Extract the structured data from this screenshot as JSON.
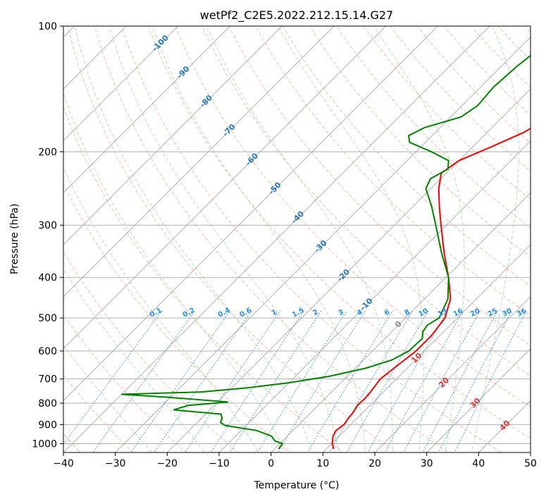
{
  "chart_data": {
    "type": "line",
    "title": "wetPf2_C2E5.2022.212.15.14.G27",
    "xlabel": "Temperature (°C)",
    "ylabel": "Pressure (hPa)",
    "xlim": [
      -40,
      50
    ],
    "ylim": [
      1050,
      100
    ],
    "yscale": "log",
    "x_ticks": [
      -40,
      -30,
      -20,
      -10,
      0,
      10,
      20,
      30,
      40,
      50
    ],
    "y_ticks": [
      100,
      200,
      300,
      400,
      500,
      600,
      700,
      800,
      900,
      1000
    ],
    "isotherm_spacing_C": 10,
    "dry_adiabat_step_C": 10,
    "moist_adiabat_surface_temps_C": [
      -20,
      -10,
      0,
      5,
      10,
      15,
      20,
      25,
      30,
      35,
      40
    ],
    "mixing_ratio_lines": [
      "0.1",
      "0.2",
      "0.4",
      "0.6",
      "1",
      "1.5",
      "2",
      "3",
      "4",
      "6",
      "8",
      "10",
      "13",
      "16",
      "20",
      "25",
      "30",
      "36"
    ],
    "mixing_ratio_label_pressure_hPa": 500,
    "isotherm_labels": [
      {
        "text": "-100",
        "t": -100
      },
      {
        "text": "-90",
        "t": -90
      },
      {
        "text": "-80",
        "t": -80
      },
      {
        "text": "-70",
        "t": -70
      },
      {
        "text": "-60",
        "t": -60
      },
      {
        "text": "-50",
        "t": -50
      },
      {
        "text": "-40",
        "t": -40
      },
      {
        "text": "-30",
        "t": -30
      },
      {
        "text": "-20",
        "t": -20
      },
      {
        "text": "-10",
        "t": -10
      },
      {
        "text": "0",
        "t": 0
      },
      {
        "text": "10",
        "t": 10
      },
      {
        "text": "20",
        "t": 20
      },
      {
        "text": "30",
        "t": 30
      },
      {
        "text": "40",
        "t": 40
      }
    ],
    "series": [
      {
        "name": "Temperature",
        "color": "#ee0000",
        "points": [
          {
            "p": 1030,
            "t": 11.4
          },
          {
            "p": 1000,
            "t": 10.1
          },
          {
            "p": 960,
            "t": 8.8
          },
          {
            "p": 930,
            "t": 8.3
          },
          {
            "p": 900,
            "t": 8.7
          },
          {
            "p": 870,
            "t": 8.3
          },
          {
            "p": 840,
            "t": 8.1
          },
          {
            "p": 810,
            "t": 7.6
          },
          {
            "p": 780,
            "t": 7.7
          },
          {
            "p": 750,
            "t": 7.5
          },
          {
            "p": 700,
            "t": 6.9
          },
          {
            "p": 650,
            "t": 7.6
          },
          {
            "p": 600,
            "t": 8.4
          },
          {
            "p": 550,
            "t": 8.4
          },
          {
            "p": 500,
            "t": 7.6
          },
          {
            "p": 450,
            "t": 5.0
          },
          {
            "p": 400,
            "t": 0.5
          },
          {
            "p": 350,
            "t": -5.0
          },
          {
            "p": 300,
            "t": -11.0
          },
          {
            "p": 270,
            "t": -15.0
          },
          {
            "p": 245,
            "t": -18.5
          },
          {
            "p": 225,
            "t": -21.0
          },
          {
            "p": 210,
            "t": -20.0
          },
          {
            "p": 195,
            "t": -16.5
          },
          {
            "p": 180,
            "t": -13.0
          },
          {
            "p": 170,
            "t": -11.5
          },
          {
            "p": 160,
            "t": -10.0
          },
          {
            "p": 150,
            "t": -9.5
          },
          {
            "p": 140,
            "t": -9.0
          },
          {
            "p": 130,
            "t": -8.0
          },
          {
            "p": 120,
            "t": -7.0
          },
          {
            "p": 110,
            "t": -7.0
          },
          {
            "p": 100,
            "t": -6.5
          }
        ]
      },
      {
        "name": "Dewpoint",
        "color": "#008000",
        "points": [
          {
            "p": 1030,
            "t": 0.8
          },
          {
            "p": 1000,
            "t": 0.5
          },
          {
            "p": 985,
            "t": -1.5
          },
          {
            "p": 960,
            "t": -3.0
          },
          {
            "p": 930,
            "t": -7.0
          },
          {
            "p": 905,
            "t": -14.0
          },
          {
            "p": 890,
            "t": -15.5
          },
          {
            "p": 870,
            "t": -16.0
          },
          {
            "p": 850,
            "t": -17.0
          },
          {
            "p": 830,
            "t": -27.0
          },
          {
            "p": 810,
            "t": -25.0
          },
          {
            "p": 795,
            "t": -18.0
          },
          {
            "p": 775,
            "t": -30.0
          },
          {
            "p": 762,
            "t": -40.0
          },
          {
            "p": 752,
            "t": -25.0
          },
          {
            "p": 735,
            "t": -17.0
          },
          {
            "p": 715,
            "t": -10.0
          },
          {
            "p": 690,
            "t": -3.5
          },
          {
            "p": 660,
            "t": 2.0
          },
          {
            "p": 630,
            "t": 5.5
          },
          {
            "p": 600,
            "t": 7.0
          },
          {
            "p": 560,
            "t": 7.2
          },
          {
            "p": 540,
            "t": 6.0
          },
          {
            "p": 520,
            "t": 5.6
          },
          {
            "p": 500,
            "t": 6.5
          },
          {
            "p": 450,
            "t": 4.5
          },
          {
            "p": 400,
            "t": 0.5
          },
          {
            "p": 350,
            "t": -5.5
          },
          {
            "p": 300,
            "t": -12.0
          },
          {
            "p": 270,
            "t": -16.5
          },
          {
            "p": 245,
            "t": -21.0
          },
          {
            "p": 232,
            "t": -22.0
          },
          {
            "p": 220,
            "t": -20.5
          },
          {
            "p": 210,
            "t": -22.0
          },
          {
            "p": 200,
            "t": -27.0
          },
          {
            "p": 190,
            "t": -33.0
          },
          {
            "p": 183,
            "t": -34.5
          },
          {
            "p": 175,
            "t": -33.0
          },
          {
            "p": 165,
            "t": -28.0
          },
          {
            "p": 155,
            "t": -27.0
          },
          {
            "p": 140,
            "t": -27.5
          },
          {
            "p": 125,
            "t": -27.0
          },
          {
            "p": 112,
            "t": -26.0
          },
          {
            "p": 100,
            "t": -24.5
          }
        ]
      }
    ]
  }
}
